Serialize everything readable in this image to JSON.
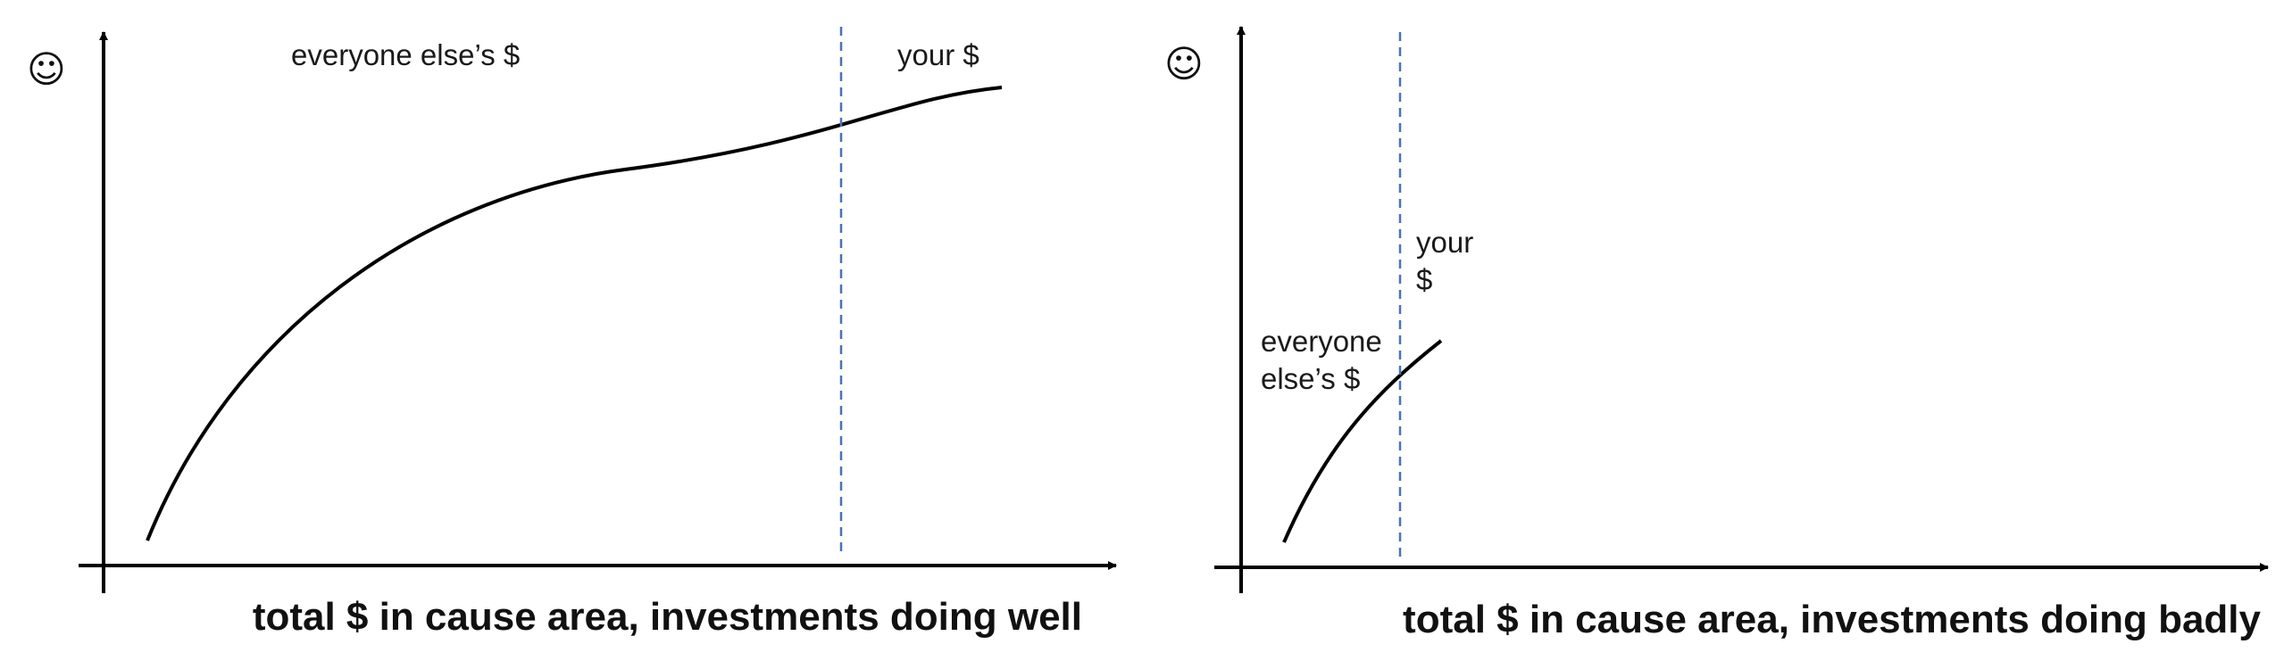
{
  "colors": {
    "axis": "#000000",
    "curve": "#000000",
    "divider": "#4a72b8",
    "text": "#1a1a1a"
  },
  "panels": [
    {
      "y_axis_icon": "☺",
      "x_axis_label": "total $ in cause area, investments doing well",
      "left_region_label_lines": [
        "everyone else’s $"
      ],
      "right_region_label_lines": [
        "your $"
      ]
    },
    {
      "y_axis_icon": "☺",
      "x_axis_label": "total $ in cause area, investments doing badly",
      "left_region_label_lines": [
        "everyone",
        "else’s $"
      ],
      "right_region_label_lines": [
        "your",
        "$"
      ]
    }
  ]
}
